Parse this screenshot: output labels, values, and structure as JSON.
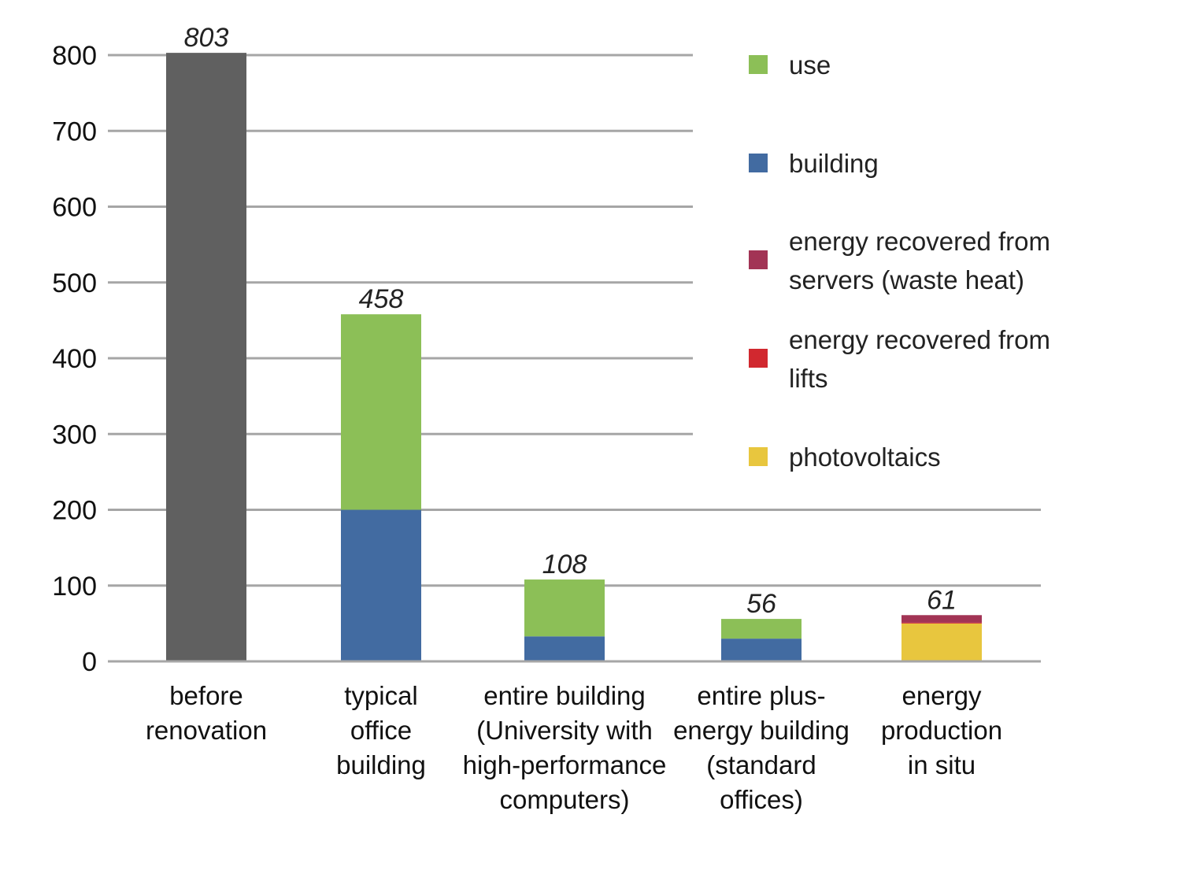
{
  "chart_data": {
    "type": "bar",
    "stacked": true,
    "ylim": [
      0,
      800
    ],
    "y_ticks": [
      "0",
      "100",
      "200",
      "300",
      "400",
      "500",
      "600",
      "700",
      "800"
    ],
    "grid": true,
    "legend_position": "right",
    "categories": [
      [
        "before",
        "renovation"
      ],
      [
        "typical",
        "office",
        "building"
      ],
      [
        "entire building",
        "(University with",
        "high-performance",
        "computers)"
      ],
      [
        "entire plus-",
        "energy building",
        "(standard",
        "offices)"
      ],
      [
        "energy",
        "production",
        "in situ"
      ]
    ],
    "totals": [
      "803",
      "458",
      "108",
      "56",
      "61"
    ],
    "series": [
      {
        "key": "total",
        "color": "#606060",
        "values": [
          803,
          0,
          0,
          0,
          0
        ]
      },
      {
        "name": "building",
        "color": "#426ba1",
        "values": [
          0,
          200,
          33,
          30,
          0
        ]
      },
      {
        "name": "use",
        "color": "#8cbf57",
        "values": [
          0,
          258,
          75,
          26,
          0
        ]
      },
      {
        "name": "photovoltaics",
        "color": "#e8c63e",
        "values": [
          0,
          0,
          0,
          0,
          50
        ]
      },
      {
        "name": "energy recovered from lifts",
        "color": "#d1282f",
        "values": [
          0,
          0,
          0,
          0,
          1
        ]
      },
      {
        "name": "energy recovered from servers (waste heat)",
        "color": "#a23455",
        "values": [
          0,
          0,
          0,
          0,
          10
        ]
      }
    ],
    "legend": [
      {
        "lines": [
          "use"
        ],
        "color": "#8cbf57"
      },
      {
        "lines": [
          "building"
        ],
        "color": "#426ba1"
      },
      {
        "lines": [
          "energy recovered from",
          "servers (waste heat)"
        ],
        "color": "#a23455"
      },
      {
        "lines": [
          "energy recovered from",
          "lifts"
        ],
        "color": "#d1282f"
      },
      {
        "lines": [
          "photovoltaics"
        ],
        "color": "#e8c63e"
      }
    ]
  }
}
